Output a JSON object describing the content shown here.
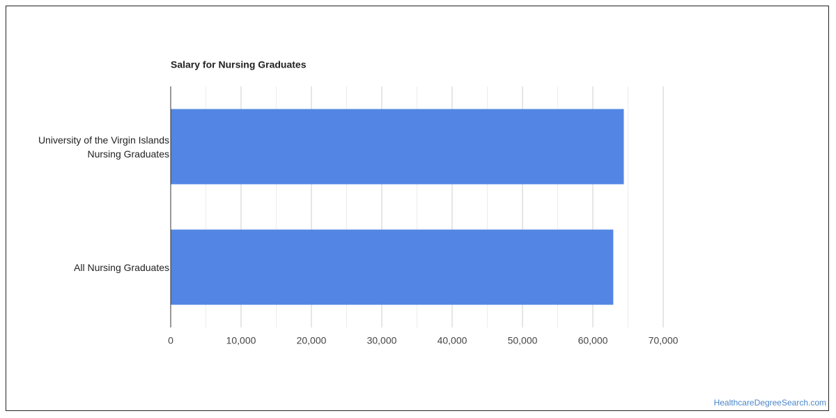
{
  "chart_data": {
    "type": "bar",
    "orientation": "horizontal",
    "title": "Salary for Nursing Graduates",
    "categories": [
      "University of the Virgin Islands Nursing Graduates",
      "All Nursing Graduates"
    ],
    "values": [
      64400,
      62900
    ],
    "color": "#5386e4",
    "xlim": [
      0,
      70000
    ],
    "xticks": [
      0,
      {
        "value": 10000,
        "label": "10,000"
      },
      {
        "value": 20000,
        "label": "20,000"
      },
      {
        "value": 30000,
        "label": "30,000"
      },
      {
        "value": 40000,
        "label": "40,000"
      },
      {
        "value": 50000,
        "label": "50,000"
      },
      {
        "value": 60000,
        "label": "60,000"
      },
      {
        "value": 70000,
        "label": "70,000"
      }
    ],
    "xminorticks": [
      5000,
      15000,
      25000,
      35000,
      45000,
      55000,
      65000
    ],
    "grid": true
  },
  "footer": {
    "source": "HealthcareDegreeSearch.com"
  }
}
